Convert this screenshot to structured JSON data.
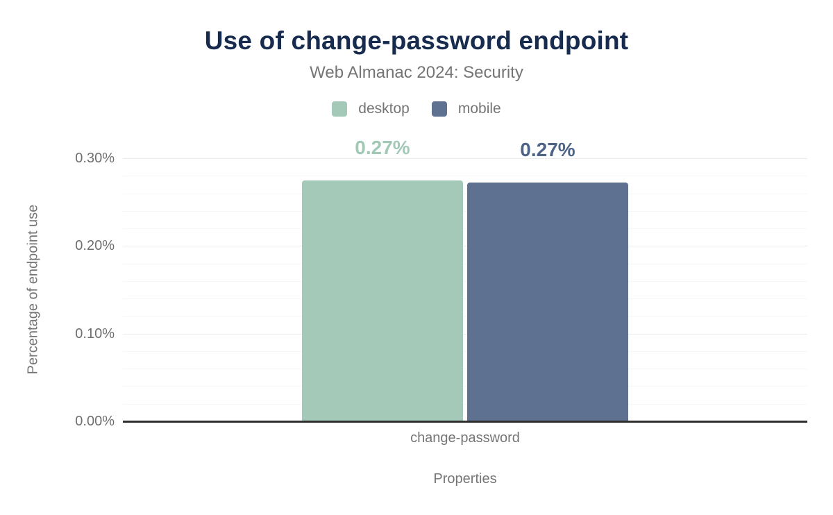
{
  "chart_data": {
    "type": "bar",
    "title": "Use of change-password endpoint",
    "subtitle": "Web Almanac 2024: Security",
    "xlabel": "Properties",
    "ylabel": "Percentage of endpoint use",
    "categories": [
      "change-password"
    ],
    "series": [
      {
        "name": "desktop",
        "color": "#a4c9b8",
        "label_color": "#a2c8b6",
        "values": [
          0.275
        ],
        "data_labels": [
          "0.27%"
        ]
      },
      {
        "name": "mobile",
        "color": "#5f7190",
        "label_color": "#4e6388",
        "values": [
          0.272
        ],
        "data_labels": [
          "0.27%"
        ]
      }
    ],
    "ylim": [
      0,
      0.3
    ],
    "yticks": [
      {
        "value": 0.0,
        "label": "0.00%"
      },
      {
        "value": 0.1,
        "label": "0.10%"
      },
      {
        "value": 0.2,
        "label": "0.20%"
      },
      {
        "value": 0.3,
        "label": "0.30%"
      }
    ],
    "minor_grid_step": 0.02,
    "grid": true,
    "legend_position": "top"
  },
  "colors": {
    "title": "#172b4e",
    "muted_text": "#757575",
    "tick_text": "#6f6f6f",
    "axis_line": "#2e2e2e",
    "major_grid": "#ececec",
    "minor_grid": "#f6f6f6",
    "background": "#ffffff"
  }
}
